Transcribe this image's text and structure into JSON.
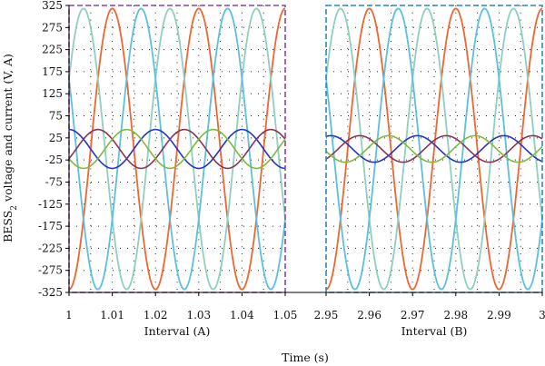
{
  "chart_data": {
    "type": "line",
    "ylabel": "BESS",
    "ylabel_subscript": "2",
    "ylabel_suffix": " voltage and current (V, A)",
    "xlabel": "Time (s)",
    "ylim": [
      -325,
      325
    ],
    "yticks": [
      325,
      275,
      225,
      175,
      125,
      75,
      25,
      -25,
      -75,
      -125,
      -175,
      -225,
      -275,
      -325
    ],
    "grid": "dotted",
    "panels": [
      {
        "label": "Interval (A)",
        "xlim": [
          1.0,
          1.05
        ],
        "xticks": [
          "1",
          "1.01",
          "1.02",
          "1.03",
          "1.04",
          "1.05"
        ],
        "border_color": "#8e44ad"
      },
      {
        "label": "Interval (B)",
        "xlim": [
          2.95,
          3.0
        ],
        "xticks": [
          "2.95",
          "2.96",
          "2.97",
          "2.98",
          "2.99",
          "3"
        ],
        "border_color": "#2e86c1"
      }
    ],
    "series": [
      {
        "group": "voltage",
        "color": "#f06530",
        "frequency_hz": 50,
        "amplitude_A": 318,
        "amplitude_B": 318,
        "phase_A_deg": -90,
        "phase_B_deg": -90
      },
      {
        "group": "voltage",
        "color": "#8fcfbf",
        "frequency_hz": 50,
        "amplitude_A": 318,
        "amplitude_B": 318,
        "phase_A_deg": 30,
        "phase_B_deg": 30
      },
      {
        "group": "voltage",
        "color": "#5bc0de",
        "frequency_hz": 50,
        "amplitude_A": 318,
        "amplitude_B": 318,
        "phase_A_deg": 150,
        "phase_B_deg": 150
      },
      {
        "group": "current",
        "color": "#2233cc",
        "frequency_hz": 50,
        "amplitude_A": 44,
        "amplitude_B": 30,
        "phase_A_deg": 90,
        "phase_B_deg": 70
      },
      {
        "group": "current",
        "color": "#8a3355",
        "frequency_hz": 50,
        "amplitude_A": 44,
        "amplitude_B": 30,
        "phase_A_deg": -30,
        "phase_B_deg": -50
      },
      {
        "group": "current",
        "color": "#7dba3c",
        "frequency_hz": 50,
        "amplitude_A": 44,
        "amplitude_B": 30,
        "phase_A_deg": -150,
        "phase_B_deg": 190
      }
    ]
  }
}
